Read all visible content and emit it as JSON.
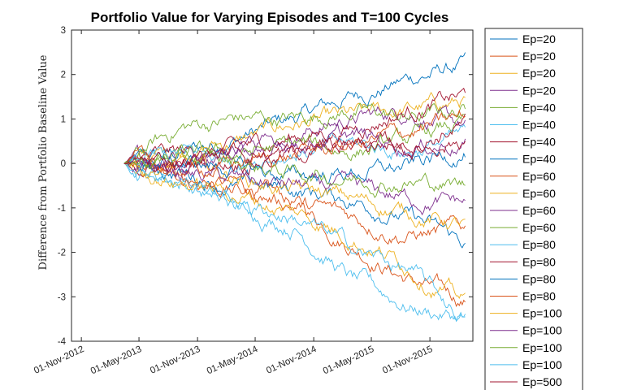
{
  "chart_data": {
    "type": "line",
    "title": "Portfolio Value for Varying Episodes and T=100 Cycles",
    "xlabel": "",
    "ylabel": "Difference from Portfolio Baseline Value",
    "x_start": "2013-03-15",
    "x_end": "2016-02-20",
    "xlim": [
      "2012-10-01",
      "2016-03-15"
    ],
    "ylim": [
      -4,
      3
    ],
    "x_ticks": [
      "01-Nov-2012",
      "01-May-2013",
      "01-Nov-2013",
      "01-May-2014",
      "01-Nov-2014",
      "01-May-2015",
      "01-Nov-2015"
    ],
    "y_ticks": [
      "-4",
      "-3",
      "-2",
      "-1",
      "0",
      "1",
      "2",
      "3"
    ],
    "grid": false,
    "legend_position": "outside-right",
    "series": [
      {
        "name": "Ep=20",
        "color": "#0072BD",
        "anchors": [
          0,
          0.2,
          0.6,
          1.0,
          1.5,
          1.9,
          2.2
        ]
      },
      {
        "name": "Ep=20",
        "color": "#D95319",
        "anchors": [
          0,
          -0.3,
          -0.5,
          -0.9,
          -1.8,
          -2.6,
          -3.1
        ]
      },
      {
        "name": "Ep=20",
        "color": "#EDB120",
        "anchors": [
          0,
          0.3,
          0.5,
          0.9,
          1.0,
          1.2,
          1.4
        ]
      },
      {
        "name": "Ep=20",
        "color": "#7E2F8E",
        "anchors": [
          0,
          0.1,
          0.4,
          0.7,
          1.0,
          1.2,
          0.8
        ]
      },
      {
        "name": "Ep=40",
        "color": "#77AC30",
        "anchors": [
          0,
          0.8,
          1.0,
          1.0,
          1.2,
          1.0,
          1.2
        ]
      },
      {
        "name": "Ep=40",
        "color": "#4DBEEE",
        "anchors": [
          0,
          -0.4,
          -1.0,
          -1.4,
          -2.6,
          -3.2,
          -3.5
        ]
      },
      {
        "name": "Ep=40",
        "color": "#A2142F",
        "anchors": [
          0,
          0.2,
          0.3,
          0.6,
          0.8,
          1.2,
          1.5
        ]
      },
      {
        "name": "Ep=40",
        "color": "#0072BD",
        "anchors": [
          0,
          -0.2,
          -0.5,
          -0.6,
          -0.8,
          -1.2,
          -1.8
        ]
      },
      {
        "name": "Ep=60",
        "color": "#D95319",
        "anchors": [
          0,
          -0.3,
          -0.6,
          -0.9,
          -1.2,
          -1.6,
          -1.5
        ]
      },
      {
        "name": "Ep=60",
        "color": "#EDB120",
        "anchors": [
          0,
          -0.1,
          -0.3,
          -0.6,
          -0.8,
          -1.1,
          -1.4
        ]
      },
      {
        "name": "Ep=60",
        "color": "#7E2F8E",
        "anchors": [
          0,
          -0.2,
          -0.4,
          -0.5,
          -0.6,
          -0.8,
          -0.9
        ]
      },
      {
        "name": "Ep=60",
        "color": "#77AC30",
        "anchors": [
          0,
          0.1,
          0.2,
          0.4,
          0.3,
          0.5,
          0.9
        ]
      },
      {
        "name": "Ep=80",
        "color": "#4DBEEE",
        "anchors": [
          0,
          0.2,
          0.1,
          0.3,
          0.4,
          0.3,
          0.6
        ]
      },
      {
        "name": "Ep=80",
        "color": "#A2142F",
        "anchors": [
          0,
          -0.1,
          0.1,
          0.2,
          0.4,
          0.5,
          0.9
        ]
      },
      {
        "name": "Ep=80",
        "color": "#0072BD",
        "anchors": [
          0,
          0.0,
          -0.1,
          -0.3,
          -0.2,
          -0.1,
          0.3
        ]
      },
      {
        "name": "Ep=80",
        "color": "#D95319",
        "anchors": [
          0,
          -0.2,
          0.0,
          0.2,
          0.4,
          0.7,
          1.0
        ]
      },
      {
        "name": "Ep=100",
        "color": "#EDB120",
        "anchors": [
          0,
          -0.4,
          -0.7,
          -1.1,
          -1.6,
          -2.3,
          -3.1
        ]
      },
      {
        "name": "Ep=100",
        "color": "#7E2F8E",
        "anchors": [
          0,
          0.0,
          0.2,
          0.5,
          0.6,
          0.4,
          0.5
        ]
      },
      {
        "name": "Ep=100",
        "color": "#77AC30",
        "anchors": [
          0,
          0.1,
          0.0,
          -0.2,
          -0.3,
          -0.4,
          -0.5
        ]
      },
      {
        "name": "Ep=100",
        "color": "#4DBEEE",
        "anchors": [
          0,
          -0.3,
          -0.9,
          -1.2,
          -1.9,
          -2.4,
          -3.5
        ]
      },
      {
        "name": "Ep=500",
        "color": "#A2142F",
        "anchors": [
          0,
          0.1,
          0.3,
          0.2,
          0.5,
          0.3,
          0.6
        ]
      }
    ]
  }
}
